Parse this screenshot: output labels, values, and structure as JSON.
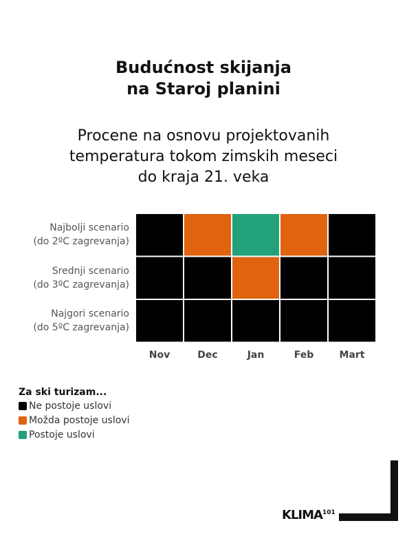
{
  "title_lines": [
    "Budućnost skijanja",
    "na Staroj planini"
  ],
  "subtitle_lines": [
    "Procene na osnovu projektovanih",
    "temperatura tokom zimskih meseci",
    "do kraja 21. veka"
  ],
  "chart_data": {
    "type": "heatmap",
    "columns": [
      "Nov",
      "Dec",
      "Jan",
      "Feb",
      "Mart"
    ],
    "rows": [
      {
        "label_lines": [
          "Najbolji scenario",
          "(do 2ºC zagrevanja)"
        ],
        "values": [
          0,
          1,
          2,
          1,
          0
        ]
      },
      {
        "label_lines": [
          "Srednji scenario",
          "(do 3ºC zagrevanja)"
        ],
        "values": [
          0,
          0,
          1,
          0,
          0
        ]
      },
      {
        "label_lines": [
          "Najgori scenario",
          "(do 5ºC zagrevanja)"
        ],
        "values": [
          0,
          0,
          0,
          0,
          0
        ]
      }
    ],
    "categories": [
      {
        "value": 0,
        "label": "Ne postoje uslovi",
        "color": "#000000"
      },
      {
        "value": 1,
        "label": "Možda postoje uslovi",
        "color": "#e0630f"
      },
      {
        "value": 2,
        "label": "Postoje uslovi",
        "color": "#23a17c"
      }
    ],
    "legend_title": "Za ski turizam..."
  },
  "logo": {
    "text": "KLIMA",
    "superscript": "101"
  }
}
